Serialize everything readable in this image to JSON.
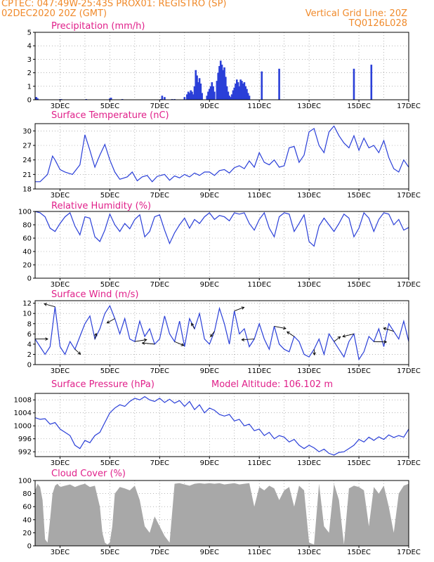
{
  "header": {
    "left_line1": "CPTEC:  047:49W-25:43S  PROX01: REGISTRO (SP)",
    "left_line2": "02DEC2020 20Z (GMT)",
    "right_line2": "Vertical Grid Line: 20Z",
    "right_line3": "TQ0126L028"
  },
  "colors": {
    "header": "#f08a2b",
    "title": "#e0208a",
    "line": "#2a3fd8",
    "cloud": "#a8a8a8",
    "grid": "#888888"
  },
  "chart_data": [
    {
      "type": "bar",
      "title": "Precipitation (mm/h)",
      "x_tick_labels": [
        "3DEC",
        "5DEC",
        "7DEC",
        "9DEC",
        "11DEC",
        "13DEC",
        "15DEC",
        "17DEC"
      ],
      "ylim": [
        0,
        5
      ],
      "y_ticks": [
        0,
        1,
        2,
        3,
        4,
        5
      ],
      "x": [
        2.05,
        2.1,
        3.0,
        3.05,
        4.05,
        5.0,
        5.05,
        5.5,
        7.05,
        7.1,
        7.2,
        7.5,
        7.6,
        8.0,
        8.1,
        8.15,
        8.2,
        8.25,
        8.3,
        8.35,
        8.4,
        8.45,
        8.5,
        8.55,
        8.6,
        8.65,
        8.7,
        8.9,
        8.95,
        9.0,
        9.05,
        9.1,
        9.15,
        9.2,
        9.3,
        9.35,
        9.4,
        9.45,
        9.5,
        9.55,
        9.6,
        9.65,
        9.7,
        9.75,
        9.8,
        9.85,
        9.9,
        9.95,
        10.0,
        10.05,
        10.1,
        10.15,
        10.2,
        10.25,
        10.3,
        10.35,
        10.4,
        10.45,
        10.5,
        10.55,
        10.6,
        11.1,
        11.8,
        14.8,
        15.5
      ],
      "values": [
        0.2,
        0.1,
        0.05,
        0.05,
        0.05,
        0.1,
        0.15,
        0.05,
        0.05,
        0.3,
        0.2,
        0.05,
        0.05,
        0.2,
        0.4,
        0.6,
        0.5,
        0.7,
        0.6,
        0.4,
        1.0,
        2.2,
        1.8,
        1.3,
        1.6,
        1.2,
        0.5,
        0.3,
        0.6,
        0.8,
        1.0,
        1.3,
        1.0,
        0.6,
        1.4,
        2.0,
        2.5,
        2.9,
        2.6,
        2.2,
        2.4,
        1.7,
        1.0,
        0.6,
        0.3,
        0.2,
        0.4,
        0.7,
        0.9,
        1.2,
        1.5,
        1.3,
        1.0,
        1.5,
        1.4,
        1.2,
        1.3,
        1.0,
        0.8,
        0.5,
        0.3,
        2.1,
        2.3,
        2.3,
        2.6
      ]
    },
    {
      "type": "line",
      "title": "Surface Temperature (nC)",
      "x_tick_labels": [
        "3DEC",
        "5DEC",
        "7DEC",
        "9DEC",
        "11DEC",
        "13DEC",
        "15DEC",
        "17DEC"
      ],
      "ylim": [
        18,
        31.5
      ],
      "y_ticks": [
        18,
        21,
        24,
        27,
        30
      ],
      "x": [
        2.0,
        2.2,
        2.5,
        2.7,
        2.8,
        3.0,
        3.2,
        3.5,
        3.8,
        4.0,
        4.2,
        4.4,
        4.6,
        4.8,
        5.0,
        5.2,
        5.4,
        5.7,
        5.9,
        6.1,
        6.3,
        6.5,
        6.7,
        6.9,
        7.2,
        7.4,
        7.6,
        7.8,
        8.0,
        8.2,
        8.4,
        8.6,
        8.8,
        9.0,
        9.2,
        9.4,
        9.6,
        9.8,
        10.0,
        10.2,
        10.4,
        10.6,
        10.8,
        11.0,
        11.2,
        11.4,
        11.6,
        11.8,
        12.0,
        12.2,
        12.4,
        12.6,
        12.8,
        13.0,
        13.2,
        13.4,
        13.6,
        13.8,
        14.0,
        14.2,
        14.4,
        14.6,
        14.8,
        15.0,
        15.2,
        15.4,
        15.6,
        15.8,
        16.0,
        16.2,
        16.4,
        16.6,
        16.8,
        17.0
      ],
      "values": [
        19.5,
        19.5,
        21,
        24.8,
        24,
        22,
        21.5,
        21,
        23,
        29.2,
        26,
        22.5,
        25,
        27.2,
        24,
        21.5,
        20,
        20.5,
        21.5,
        19.7,
        20.5,
        20.8,
        19.5,
        20.6,
        21,
        19.8,
        20.7,
        20.3,
        21,
        20.5,
        21.3,
        20.8,
        21.5,
        21.5,
        20.8,
        21.8,
        22,
        21.3,
        22.4,
        22.8,
        22.2,
        23.8,
        22.5,
        25.5,
        23.5,
        23,
        24,
        22.5,
        22.8,
        26.5,
        26.8,
        23.5,
        25,
        29.8,
        30.5,
        27,
        25.5,
        29.8,
        31,
        29,
        27.5,
        26.5,
        29,
        26,
        28.5,
        26.5,
        27,
        25.5,
        28,
        24.5,
        22.2,
        21.5,
        24,
        22.5
      ]
    },
    {
      "type": "line",
      "title": "Relative Humidity (%)",
      "x_tick_labels": [
        "3DEC",
        "5DEC",
        "7DEC",
        "9DEC",
        "11DEC",
        "13DEC",
        "15DEC",
        "17DEC"
      ],
      "ylim": [
        0,
        100
      ],
      "y_ticks": [
        0,
        20,
        40,
        60,
        80,
        100
      ],
      "x": [
        2.0,
        2.2,
        2.4,
        2.6,
        2.8,
        3.0,
        3.2,
        3.4,
        3.6,
        3.8,
        4.0,
        4.2,
        4.4,
        4.6,
        4.8,
        5.0,
        5.2,
        5.4,
        5.6,
        5.8,
        6.0,
        6.2,
        6.4,
        6.6,
        6.8,
        7.0,
        7.2,
        7.4,
        7.6,
        7.8,
        8.0,
        8.2,
        8.4,
        8.6,
        8.8,
        9.0,
        9.2,
        9.4,
        9.6,
        9.8,
        10.0,
        10.2,
        10.4,
        10.6,
        10.8,
        11.0,
        11.2,
        11.4,
        11.6,
        11.8,
        12.0,
        12.2,
        12.4,
        12.6,
        12.8,
        13.0,
        13.2,
        13.4,
        13.6,
        13.8,
        14.0,
        14.2,
        14.4,
        14.6,
        14.8,
        15.0,
        15.2,
        15.4,
        15.6,
        15.8,
        16.0,
        16.2,
        16.4,
        16.6,
        16.8,
        17.0
      ],
      "values": [
        100,
        98,
        92,
        75,
        70,
        82,
        92,
        98,
        78,
        65,
        92,
        90,
        62,
        55,
        72,
        96,
        80,
        70,
        82,
        74,
        88,
        95,
        62,
        70,
        92,
        95,
        72,
        52,
        68,
        80,
        90,
        75,
        88,
        82,
        92,
        98,
        88,
        94,
        92,
        86,
        98,
        96,
        98,
        82,
        72,
        88,
        98,
        75,
        62,
        92,
        98,
        96,
        70,
        82,
        95,
        55,
        48,
        78,
        90,
        80,
        70,
        82,
        96,
        90,
        62,
        75,
        98,
        90,
        70,
        88,
        98,
        96,
        80,
        88,
        72,
        76
      ]
    },
    {
      "type": "line",
      "title": "Surface Wind (m/s)",
      "x_tick_labels": [
        "3DEC",
        "5DEC",
        "7DEC",
        "9DEC",
        "11DEC",
        "13DEC",
        "15DEC",
        "17DEC"
      ],
      "ylim": [
        0,
        12.5
      ],
      "y_ticks": [
        0,
        2,
        4,
        6,
        8,
        10,
        12
      ],
      "x": [
        2.0,
        2.2,
        2.4,
        2.6,
        2.8,
        3.0,
        3.2,
        3.4,
        3.6,
        3.8,
        4.0,
        4.2,
        4.4,
        4.6,
        4.8,
        5.0,
        5.2,
        5.4,
        5.6,
        5.8,
        6.0,
        6.2,
        6.4,
        6.6,
        6.8,
        7.0,
        7.2,
        7.4,
        7.6,
        7.8,
        8.0,
        8.2,
        8.4,
        8.6,
        8.8,
        9.0,
        9.2,
        9.4,
        9.6,
        9.8,
        10.0,
        10.2,
        10.4,
        10.6,
        10.8,
        11.0,
        11.2,
        11.4,
        11.6,
        11.8,
        12.0,
        12.2,
        12.4,
        12.6,
        12.8,
        13.0,
        13.2,
        13.4,
        13.6,
        13.8,
        14.0,
        14.2,
        14.4,
        14.6,
        14.8,
        15.0,
        15.2,
        15.4,
        15.6,
        15.8,
        16.0,
        16.2,
        16.4,
        16.6,
        16.8,
        17.0
      ],
      "values": [
        5,
        3.5,
        2,
        3.5,
        11.3,
        3.5,
        2,
        4.5,
        3,
        5.5,
        8,
        9.5,
        5,
        7,
        10,
        11.5,
        9,
        6,
        9,
        5,
        4.5,
        8.5,
        5.5,
        7,
        4,
        5,
        9.5,
        6,
        4.5,
        8.5,
        3.5,
        9,
        7,
        10,
        5,
        4,
        6.5,
        11,
        8,
        4,
        10.5,
        6,
        7,
        3.5,
        5,
        8,
        5,
        3,
        7.5,
        4,
        3,
        2.5,
        5.5,
        4.5,
        2,
        1.5,
        3,
        5,
        2,
        6,
        4.5,
        3,
        1.5,
        4.5,
        6,
        1,
        2.5,
        5.5,
        4.5,
        7,
        3.5,
        8,
        6.5,
        5,
        8.5,
        4.5
      ]
    },
    {
      "type": "line",
      "title": "Surface Pressure (hPa)",
      "annotation": "Model Altitude: 106.102 m",
      "x_tick_labels": [
        "3DEC",
        "5DEC",
        "7DEC",
        "9DEC",
        "11DEC",
        "13DEC",
        "15DEC",
        "17DEC"
      ],
      "ylim": [
        990.5,
        1010
      ],
      "y_ticks": [
        992,
        996,
        1000,
        1004,
        1008
      ],
      "x": [
        2.0,
        2.2,
        2.4,
        2.6,
        2.8,
        3.0,
        3.2,
        3.4,
        3.6,
        3.8,
        4.0,
        4.2,
        4.4,
        4.6,
        4.8,
        5.0,
        5.2,
        5.4,
        5.6,
        5.8,
        6.0,
        6.2,
        6.4,
        6.6,
        6.8,
        7.0,
        7.2,
        7.4,
        7.6,
        7.8,
        8.0,
        8.2,
        8.4,
        8.6,
        8.8,
        9.0,
        9.2,
        9.4,
        9.6,
        9.8,
        10.0,
        10.2,
        10.4,
        10.6,
        10.8,
        11.0,
        11.2,
        11.4,
        11.6,
        11.8,
        12.0,
        12.2,
        12.4,
        12.6,
        12.8,
        13.0,
        13.2,
        13.4,
        13.6,
        13.8,
        14.0,
        14.2,
        14.4,
        14.6,
        14.8,
        15.0,
        15.2,
        15.4,
        15.6,
        15.8,
        16.0,
        16.2,
        16.4,
        16.6,
        16.8,
        17.0
      ],
      "values": [
        1002.5,
        1002,
        1002.2,
        1000.5,
        1001,
        999,
        998,
        997,
        994,
        993,
        995.5,
        994.8,
        997,
        998,
        1001,
        1004,
        1005.5,
        1006.5,
        1006,
        1007.5,
        1008.5,
        1008,
        1009,
        1008,
        1007.5,
        1008.5,
        1007.2,
        1008.2,
        1007,
        1007.8,
        1006,
        1007.5,
        1005,
        1006.5,
        1004,
        1005.5,
        1004.8,
        1003.5,
        1003,
        1003.5,
        1001.5,
        1002,
        1000,
        1000.5,
        998.5,
        999,
        997,
        998,
        996,
        997,
        996.5,
        995,
        995.8,
        994,
        993,
        994,
        993.2,
        992,
        992.8,
        991.5,
        991,
        991.8,
        992,
        993,
        994,
        995.8,
        995,
        996.5,
        995.5,
        996.6,
        995.8,
        997.2,
        996.4,
        997,
        996.5,
        999
      ]
    },
    {
      "type": "area",
      "title": "Cloud Cover (%)",
      "x_tick_labels": [
        "3DEC",
        "5DEC",
        "7DEC",
        "9DEC",
        "11DEC",
        "13DEC",
        "15DEC",
        "17DEC"
      ],
      "ylim": [
        0,
        100
      ],
      "y_ticks": [
        0,
        20,
        40,
        60,
        80,
        100
      ],
      "x": [
        2.0,
        2.1,
        2.2,
        2.3,
        2.4,
        2.5,
        2.6,
        2.7,
        2.8,
        2.9,
        3.0,
        3.2,
        3.4,
        3.6,
        3.8,
        4.0,
        4.2,
        4.4,
        4.6,
        4.7,
        4.8,
        4.9,
        5.0,
        5.1,
        5.2,
        5.4,
        5.6,
        5.8,
        6.0,
        6.2,
        6.4,
        6.6,
        6.8,
        7.0,
        7.2,
        7.4,
        7.6,
        7.8,
        8.0,
        8.2,
        8.4,
        8.6,
        8.8,
        9.0,
        9.2,
        9.4,
        9.6,
        9.8,
        10.0,
        10.2,
        10.4,
        10.6,
        10.8,
        11.0,
        11.2,
        11.4,
        11.6,
        11.8,
        12.0,
        12.2,
        12.4,
        12.6,
        12.8,
        13.0,
        13.2,
        13.4,
        13.6,
        13.8,
        14.0,
        14.2,
        14.4,
        14.6,
        14.8,
        15.0,
        15.2,
        15.4,
        15.6,
        15.8,
        16.0,
        16.2,
        16.4,
        16.6,
        16.8,
        17.0
      ],
      "values": [
        85,
        95,
        90,
        70,
        10,
        5,
        40,
        80,
        92,
        95,
        90,
        92,
        94,
        90,
        93,
        95,
        90,
        92,
        60,
        20,
        5,
        2,
        5,
        30,
        80,
        90,
        88,
        85,
        92,
        70,
        30,
        20,
        45,
        30,
        15,
        5,
        95,
        96,
        94,
        92,
        95,
        96,
        95,
        96,
        95,
        96,
        94,
        95,
        96,
        94,
        95,
        96,
        60,
        90,
        85,
        92,
        88,
        70,
        85,
        90,
        60,
        92,
        85,
        5,
        2,
        95,
        30,
        20,
        95,
        70,
        2,
        88,
        92,
        90,
        85,
        30,
        90,
        80,
        92,
        60,
        20,
        80,
        92,
        95
      ]
    }
  ]
}
